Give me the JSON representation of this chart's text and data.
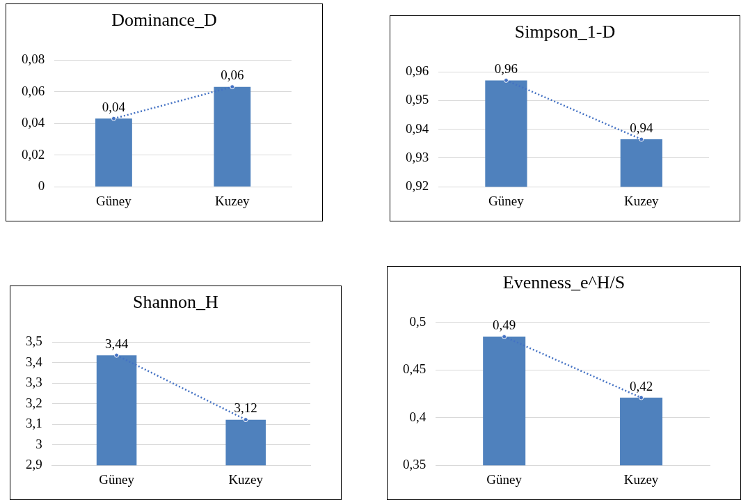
{
  "chart_data": [
    {
      "type": "bar",
      "title": "Dominance_D",
      "categories": [
        "Güney",
        "Kuzey"
      ],
      "grid": "y",
      "legend": false,
      "ylim": [
        0,
        0.08
      ],
      "yticks": [
        0,
        {
          "value": 0.02,
          "label": "0,02"
        },
        {
          "value": 0.04,
          "label": "0,04"
        },
        {
          "value": 0.06,
          "label": "0,06"
        },
        {
          "value": 0.08,
          "label": "0,08"
        }
      ],
      "series": [
        {
          "color": "#4f81bd",
          "values": [
            0.043,
            0.063
          ],
          "value_labels": [
            "0,04",
            "0,06"
          ]
        },
        {
          "type": "line",
          "color": "#4472c4",
          "values": [
            0.043,
            0.063
          ],
          "line_style": "dotted",
          "marker": "circle"
        }
      ]
    },
    {
      "type": "bar",
      "title": "Simpson_1-D",
      "categories": [
        "Güney",
        "Kuzey"
      ],
      "grid": "y",
      "legend": false,
      "ylim": [
        0.92,
        0.96
      ],
      "yticks": [
        {
          "value": 0.92,
          "label": "0,92"
        },
        {
          "value": 0.93,
          "label": "0,93"
        },
        {
          "value": 0.94,
          "label": "0,94"
        },
        {
          "value": 0.95,
          "label": "0,95"
        },
        {
          "value": 0.96,
          "label": "0,96"
        }
      ],
      "series": [
        {
          "color": "#4f81bd",
          "values": [
            0.957,
            0.9365
          ],
          "value_labels": [
            "0,96",
            "0,94"
          ]
        },
        {
          "type": "line",
          "color": "#4472c4",
          "values": [
            0.957,
            0.9365
          ],
          "line_style": "dotted",
          "marker": "circle"
        }
      ]
    },
    {
      "type": "bar",
      "title": "Shannon_H",
      "categories": [
        "Güney",
        "Kuzey"
      ],
      "grid": "y",
      "legend": false,
      "ylim": [
        2.9,
        3.5
      ],
      "yticks": [
        {
          "value": 2.9,
          "label": "2,9"
        },
        3,
        {
          "value": 3.1,
          "label": "3,1"
        },
        {
          "value": 3.2,
          "label": "3,2"
        },
        {
          "value": 3.3,
          "label": "3,3"
        },
        {
          "value": 3.4,
          "label": "3,4"
        },
        {
          "value": 3.5,
          "label": "3,5"
        }
      ],
      "series": [
        {
          "color": "#4f81bd",
          "values": [
            3.435,
            3.122
          ],
          "value_labels": [
            "3,44",
            "3,12"
          ]
        },
        {
          "type": "line",
          "color": "#4472c4",
          "values": [
            3.435,
            3.122
          ],
          "line_style": "dotted",
          "marker": "circle"
        }
      ]
    },
    {
      "type": "bar",
      "title": "Evenness_e^H/S",
      "categories": [
        "Güney",
        "Kuzey"
      ],
      "grid": "y",
      "legend": false,
      "ylim": [
        0.35,
        0.5
      ],
      "yticks": [
        {
          "value": 0.35,
          "label": "0,35"
        },
        {
          "value": 0.4,
          "label": "0,4"
        },
        {
          "value": 0.45,
          "label": "0,45"
        },
        {
          "value": 0.5,
          "label": "0,5"
        }
      ],
      "series": [
        {
          "color": "#4f81bd",
          "values": [
            0.485,
            0.421
          ],
          "value_labels": [
            "0,49",
            "0,42"
          ]
        },
        {
          "type": "line",
          "color": "#4472c4",
          "values": [
            0.485,
            0.421
          ],
          "line_style": "dotted",
          "marker": "circle"
        }
      ]
    }
  ]
}
